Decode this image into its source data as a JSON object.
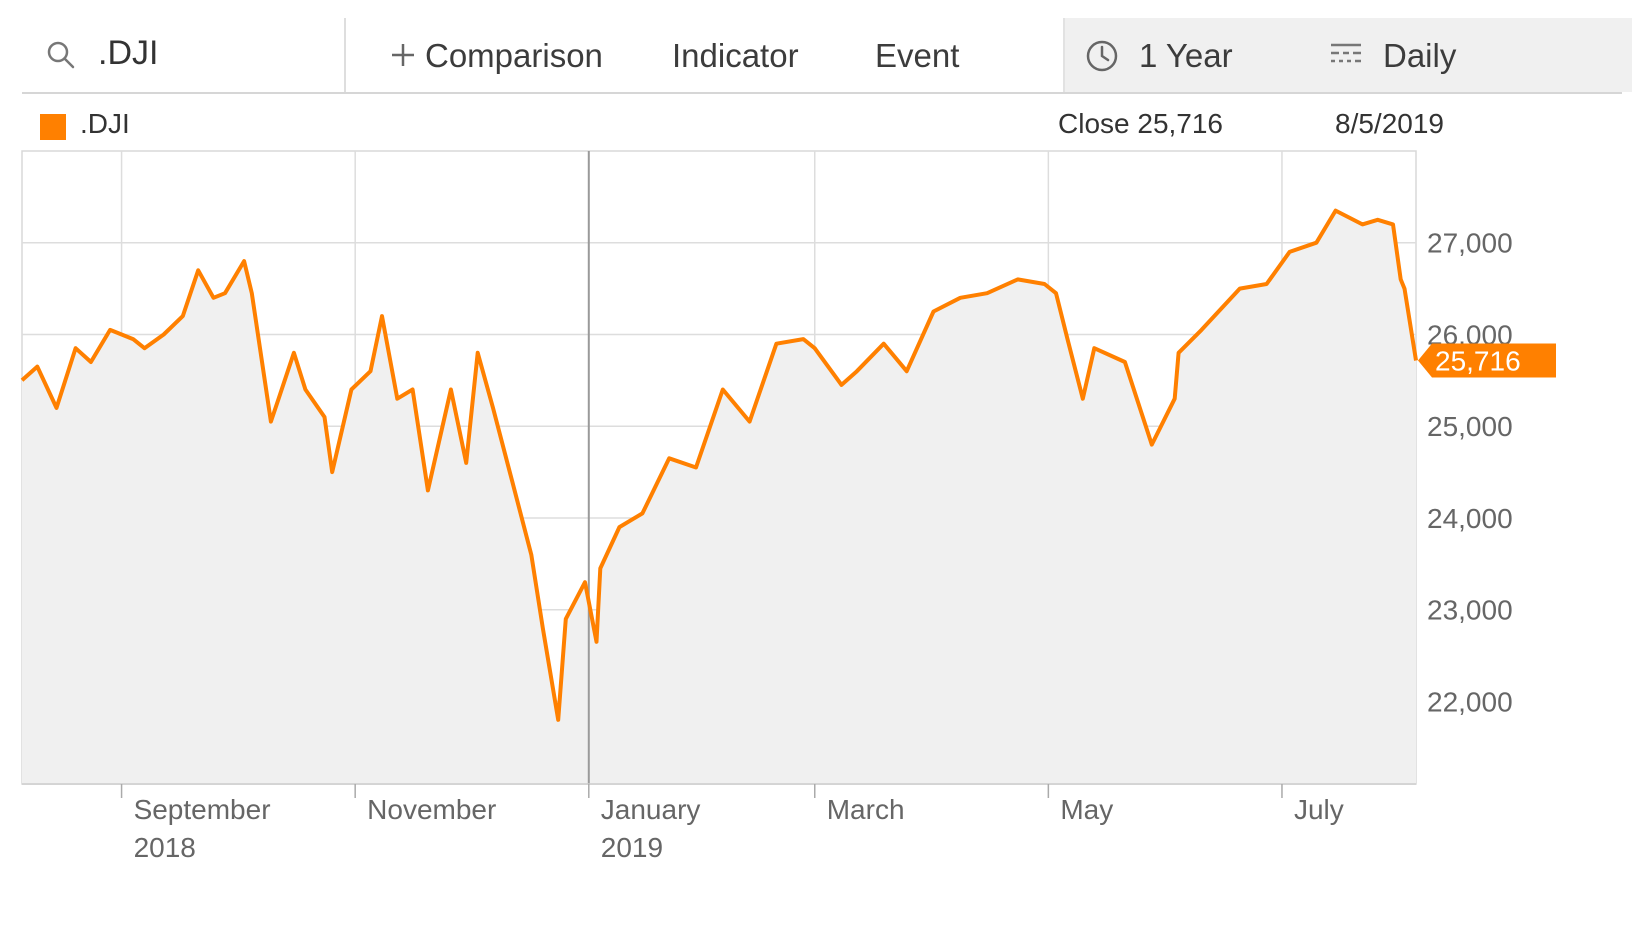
{
  "toolbar": {
    "search_value": ".DJI",
    "comparison_label": "Comparison",
    "indicator_label": "Indicator",
    "event_label": "Event",
    "range_label": "1 Year",
    "interval_label": "Daily"
  },
  "legend": {
    "symbol": ".DJI",
    "close_text": "Close 25,716",
    "date_text": "8/5/2019"
  },
  "colors": {
    "series": "#ff8000",
    "area_fill": "#f0f0f0",
    "grid": "#dddddd"
  },
  "chart_data": {
    "type": "area",
    "series": [
      {
        "name": ".DJI",
        "x": [
          "2018-08-06",
          "2018-08-10",
          "2018-08-15",
          "2018-08-20",
          "2018-08-24",
          "2018-08-29",
          "2018-09-04",
          "2018-09-07",
          "2018-09-12",
          "2018-09-17",
          "2018-09-21",
          "2018-09-25",
          "2018-09-28",
          "2018-10-03",
          "2018-10-05",
          "2018-10-10",
          "2018-10-12",
          "2018-10-16",
          "2018-10-19",
          "2018-10-24",
          "2018-10-26",
          "2018-10-31",
          "2018-11-05",
          "2018-11-08",
          "2018-11-12",
          "2018-11-16",
          "2018-11-20",
          "2018-11-26",
          "2018-11-30",
          "2018-12-03",
          "2018-12-07",
          "2018-12-12",
          "2018-12-17",
          "2018-12-20",
          "2018-12-24",
          "2018-12-26",
          "2018-12-31",
          "2019-01-03",
          "2019-01-04",
          "2019-01-09",
          "2019-01-15",
          "2019-01-22",
          "2019-01-29",
          "2019-02-05",
          "2019-02-12",
          "2019-02-19",
          "2019-02-26",
          "2019-03-01",
          "2019-03-08",
          "2019-03-12",
          "2019-03-19",
          "2019-03-25",
          "2019-04-01",
          "2019-04-08",
          "2019-04-15",
          "2019-04-23",
          "2019-04-30",
          "2019-05-03",
          "2019-05-06",
          "2019-05-10",
          "2019-05-13",
          "2019-05-21",
          "2019-05-28",
          "2019-06-03",
          "2019-06-04",
          "2019-06-10",
          "2019-06-20",
          "2019-06-27",
          "2019-07-03",
          "2019-07-10",
          "2019-07-15",
          "2019-07-22",
          "2019-07-26",
          "2019-07-30",
          "2019-08-01",
          "2019-08-02",
          "2019-08-05"
        ],
        "y": [
          25500,
          25650,
          25200,
          25850,
          25700,
          26050,
          25950,
          25850,
          26000,
          26200,
          26700,
          26400,
          26450,
          26800,
          26450,
          25050,
          25300,
          25800,
          25400,
          25100,
          24500,
          25400,
          25600,
          26200,
          25300,
          25400,
          24300,
          25400,
          24600,
          25800,
          25200,
          24400,
          23600,
          22800,
          21800,
          22900,
          23300,
          22650,
          23450,
          23900,
          24050,
          24650,
          24550,
          25400,
          25050,
          25900,
          25950,
          25850,
          25450,
          25600,
          25900,
          25600,
          26250,
          26400,
          26450,
          26600,
          26550,
          26450,
          25950,
          25300,
          25850,
          25700,
          24800,
          25300,
          25800,
          26050,
          26500,
          26550,
          26900,
          27000,
          27350,
          27200,
          27250,
          27200,
          26600,
          26500,
          25716
        ]
      }
    ],
    "x_ticks": [
      {
        "date": "2018-09-01",
        "label": "September",
        "sublabel": "2018"
      },
      {
        "date": "2018-11-01",
        "label": "November",
        "sublabel": ""
      },
      {
        "date": "2019-01-01",
        "label": "January",
        "sublabel": "2019"
      },
      {
        "date": "2019-03-01",
        "label": "March",
        "sublabel": ""
      },
      {
        "date": "2019-05-01",
        "label": "May",
        "sublabel": ""
      },
      {
        "date": "2019-07-01",
        "label": "July",
        "sublabel": ""
      }
    ],
    "y_ticks": [
      {
        "value": 22000,
        "label": "22,000"
      },
      {
        "value": 23000,
        "label": "23,000"
      },
      {
        "value": 24000,
        "label": "24,000"
      },
      {
        "value": 25000,
        "label": "25,000"
      },
      {
        "value": 26000,
        "label": "26,000"
      },
      {
        "value": 27000,
        "label": "27,000"
      }
    ],
    "ylim": [
      21100,
      28000
    ],
    "xlim": [
      "2018-08-06",
      "2019-08-05"
    ],
    "last_value_label": "25,716",
    "grid": true,
    "y_axis_side": "right"
  }
}
